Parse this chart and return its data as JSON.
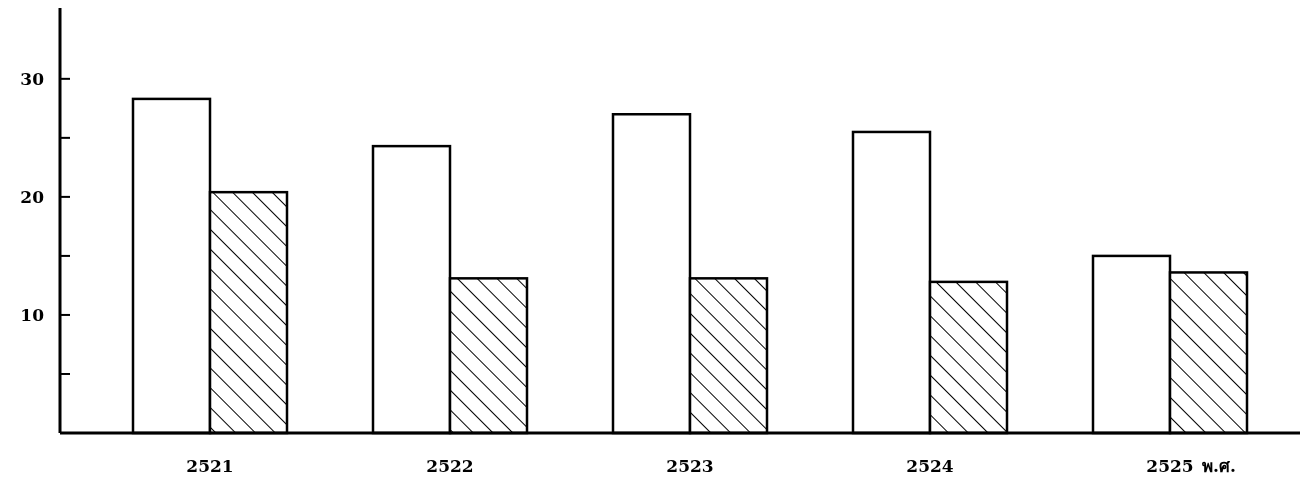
{
  "chart_data": {
    "type": "bar",
    "xlabel": "พ.ศ.",
    "categories": [
      "2521",
      "2522",
      "2523",
      "2524",
      "2525"
    ],
    "series": [
      {
        "color": "#ffffff",
        "values": [
          28.3,
          24.3,
          27.0,
          25.5,
          15.0
        ]
      },
      {
        "color": "#000000",
        "values": [
          20.4,
          13.1,
          13.1,
          12.8,
          13.6
        ]
      }
    ],
    "ylim": [
      0,
      36
    ],
    "yticks": [
      {
        "value": 5,
        "label": null
      },
      10,
      {
        "value": 15,
        "label": null
      },
      20,
      {
        "value": 25,
        "label": null
      },
      30
    ],
    "grid": false
  }
}
